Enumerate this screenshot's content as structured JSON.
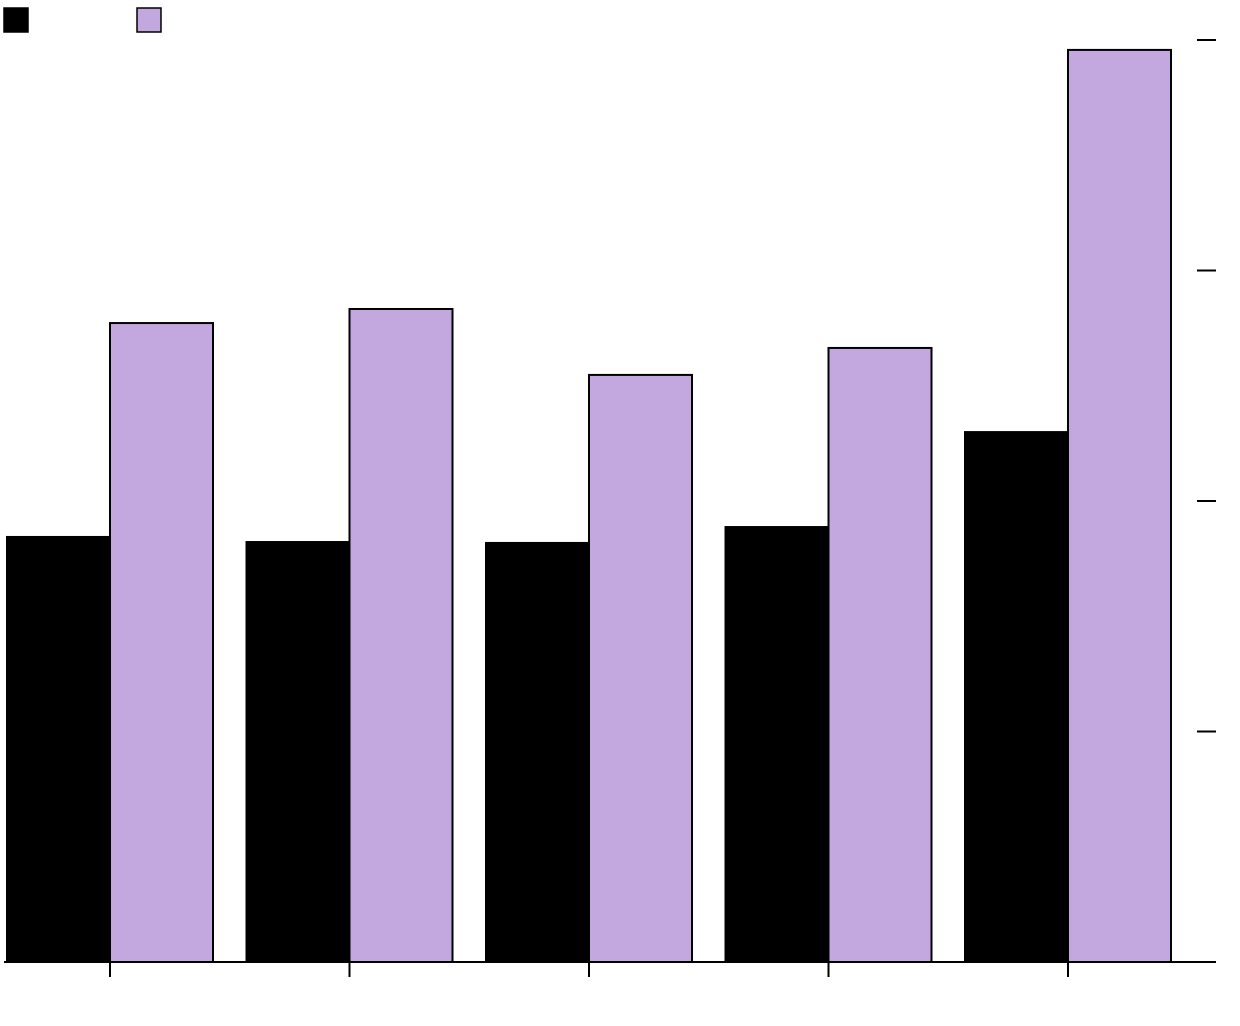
{
  "chart_data": {
    "type": "bar",
    "categories": [
      null,
      null,
      null,
      null,
      null
    ],
    "series": [
      {
        "color": "#000000",
        "values": [
          18.44,
          18.22,
          18.18,
          18.87,
          22.99
        ]
      },
      {
        "color": "#c3a7df",
        "values": [
          27.72,
          28.33,
          25.47,
          26.64,
          39.57
        ]
      }
    ],
    "ylim": [
      0,
      40
    ],
    "yticks": [
      0,
      10,
      20,
      30,
      40
    ],
    "grid": false
  }
}
